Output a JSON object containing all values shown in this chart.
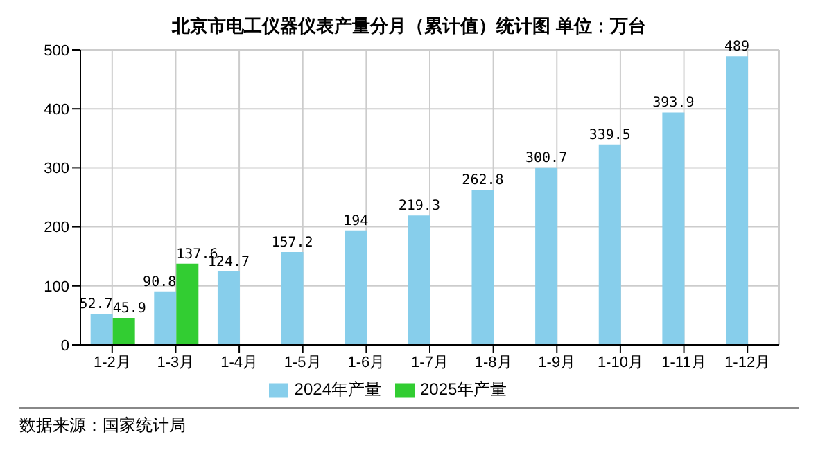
{
  "chart_data": {
    "type": "bar",
    "title": "北京市电工仪器仪表产量分月（累计值）统计图 单位：万台",
    "categories": [
      "1-2月",
      "1-3月",
      "1-4月",
      "1-5月",
      "1-6月",
      "1-7月",
      "1-8月",
      "1-9月",
      "1-10月",
      "1-11月",
      "1-12月"
    ],
    "series": [
      {
        "name": "2024年产量",
        "color": "#87ceeb",
        "values": [
          52.7,
          90.8,
          124.7,
          157.2,
          194,
          219.3,
          262.8,
          300.7,
          339.5,
          393.9,
          489
        ]
      },
      {
        "name": "2025年产量",
        "color": "#32cd32",
        "values": [
          45.9,
          137.6,
          null,
          null,
          null,
          null,
          null,
          null,
          null,
          null,
          null
        ]
      }
    ],
    "ylim": [
      0,
      500
    ],
    "yticks": [
      0,
      100,
      200,
      300,
      400,
      500
    ],
    "grid": true,
    "legend": "bottom",
    "data_labels": true,
    "annotations": [
      "数据来源：国家统计局"
    ]
  }
}
